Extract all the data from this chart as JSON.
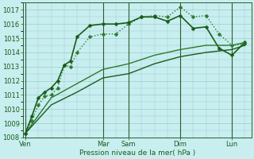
{
  "background_color": "#c8eef0",
  "grid_color": "#99cccc",
  "line_color_dark": "#1a5c1a",
  "line_color_medium": "#2d7a2d",
  "xlabel": "Pression niveau de la mer( hPa )",
  "ylim": [
    1008,
    1017.5
  ],
  "yticks": [
    1008,
    1009,
    1010,
    1011,
    1012,
    1013,
    1014,
    1015,
    1016,
    1017
  ],
  "day_labels": [
    "Ven",
    "",
    "Mar",
    "Sam",
    "",
    "Dim",
    "",
    "Lun"
  ],
  "vline_positions": [
    0,
    6,
    8,
    12,
    16
  ],
  "vline_labels": [
    "Ven",
    "Mar",
    "Sam",
    "Dim",
    "Lun"
  ],
  "series": [
    {
      "x": [
        0,
        0.5,
        1,
        1.5,
        2,
        2.5,
        3,
        3.5,
        4,
        5,
        6,
        7,
        8,
        9,
        10,
        11,
        12,
        13,
        14,
        15,
        16,
        17
      ],
      "y": [
        1008.3,
        1009.2,
        1010.3,
        1010.9,
        1011.0,
        1011.5,
        1013.1,
        1013.0,
        1014.0,
        1015.1,
        1015.3,
        1015.3,
        1016.0,
        1016.5,
        1016.6,
        1016.5,
        1017.2,
        1016.5,
        1016.6,
        1015.3,
        1014.5,
        1014.6
      ],
      "color": "#2d7a2d",
      "linewidth": 1.0,
      "marker": "D",
      "markersize": 2.5,
      "linestyle": ":"
    },
    {
      "x": [
        0,
        0.5,
        1,
        1.5,
        2,
        2.5,
        3,
        3.5,
        4,
        5,
        6,
        7,
        8,
        9,
        10,
        11,
        12,
        13,
        14,
        15,
        16,
        17
      ],
      "y": [
        1008.3,
        1009.5,
        1010.8,
        1011.2,
        1011.5,
        1012.0,
        1013.1,
        1013.4,
        1015.1,
        1015.9,
        1016.0,
        1016.0,
        1016.1,
        1016.5,
        1016.5,
        1016.2,
        1016.6,
        1015.7,
        1015.8,
        1014.3,
        1013.8,
        1014.7
      ],
      "color": "#1a5c1a",
      "linewidth": 1.2,
      "marker": "D",
      "markersize": 2.5,
      "linestyle": "-"
    },
    {
      "x": [
        0,
        2,
        4,
        6,
        8,
        10,
        12,
        14,
        16,
        17
      ],
      "y": [
        1008.3,
        1010.8,
        1011.8,
        1012.8,
        1013.2,
        1013.8,
        1014.2,
        1014.5,
        1014.5,
        1014.7
      ],
      "color": "#2d7a2d",
      "linewidth": 1.0,
      "marker": null,
      "markersize": 0,
      "linestyle": "-"
    },
    {
      "x": [
        0,
        2,
        4,
        6,
        8,
        10,
        12,
        14,
        16,
        17
      ],
      "y": [
        1008.3,
        1010.3,
        1011.2,
        1012.2,
        1012.5,
        1013.2,
        1013.7,
        1014.0,
        1014.2,
        1014.5
      ],
      "color": "#1a5c1a",
      "linewidth": 1.0,
      "marker": null,
      "markersize": 0,
      "linestyle": "-"
    }
  ]
}
